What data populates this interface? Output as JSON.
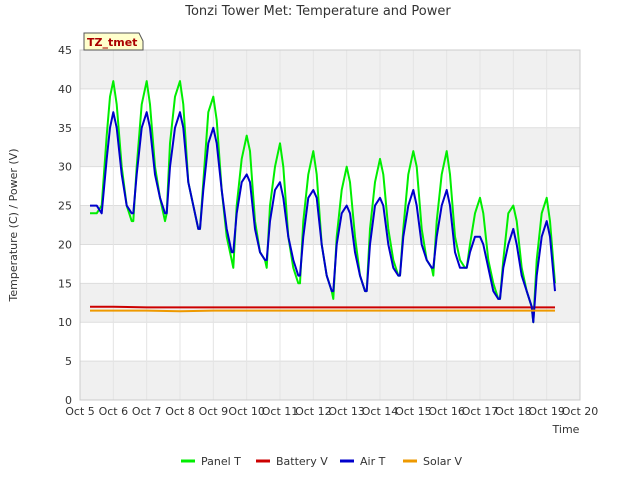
{
  "chart_data": {
    "type": "line",
    "title": "Tonzi Tower Met: Temperature and Power",
    "badge": "TZ_tmet",
    "xlabel": "Time",
    "ylabel": "Temperature (C) / Power (V)",
    "xlim": [
      5,
      20
    ],
    "ylim": [
      0,
      45
    ],
    "x_ticks": [
      5,
      6,
      7,
      8,
      9,
      10,
      11,
      12,
      13,
      14,
      15,
      16,
      17,
      18,
      19,
      20
    ],
    "x_tick_labels": [
      "Oct 5",
      "Oct 6",
      "Oct 7",
      "Oct 8",
      "Oct 9",
      "Oct 10",
      "Oct 11",
      "Oct 12",
      "Oct 13",
      "Oct 14",
      "Oct 15",
      "Oct 16",
      "Oct 17",
      "Oct 18",
      "Oct 19",
      "Oct 20"
    ],
    "y_ticks": [
      0,
      5,
      10,
      15,
      20,
      25,
      30,
      35,
      40,
      45
    ],
    "y_tick_labels": [
      "0",
      "5",
      "10",
      "15",
      "20",
      "25",
      "30",
      "35",
      "40",
      "45"
    ],
    "grid": true,
    "legend_position": "bottom",
    "series": [
      {
        "name": "Panel T",
        "color": "#00ee00",
        "x": [
          5.3,
          5.5,
          5.65,
          5.8,
          5.9,
          6.0,
          6.1,
          6.25,
          6.4,
          6.55,
          6.6,
          6.7,
          6.85,
          7.0,
          7.1,
          7.25,
          7.4,
          7.55,
          7.6,
          7.7,
          7.85,
          8.0,
          8.1,
          8.25,
          8.4,
          8.55,
          8.6,
          8.7,
          8.85,
          9.0,
          9.1,
          9.25,
          9.4,
          9.55,
          9.6,
          9.7,
          9.85,
          10.0,
          10.1,
          10.25,
          10.4,
          10.55,
          10.6,
          10.7,
          10.85,
          11.0,
          11.1,
          11.25,
          11.4,
          11.55,
          11.6,
          11.7,
          11.85,
          12.0,
          12.1,
          12.25,
          12.4,
          12.55,
          12.6,
          12.7,
          12.85,
          13.0,
          13.1,
          13.25,
          13.4,
          13.55,
          13.6,
          13.7,
          13.85,
          14.0,
          14.1,
          14.25,
          14.4,
          14.55,
          14.6,
          14.7,
          14.85,
          15.0,
          15.1,
          15.25,
          15.4,
          15.55,
          15.6,
          15.7,
          15.85,
          16.0,
          16.1,
          16.25,
          16.4,
          16.55,
          16.6,
          16.7,
          16.85,
          17.0,
          17.1,
          17.25,
          17.4,
          17.55,
          17.6,
          17.7,
          17.85,
          18.0,
          18.1,
          18.25,
          18.4,
          18.55,
          18.6,
          18.7,
          18.85,
          19.0,
          19.1,
          19.25
        ],
        "y": [
          24,
          24,
          25,
          34,
          39,
          41,
          38,
          30,
          25,
          23,
          23,
          30,
          38,
          41,
          38,
          30,
          26,
          23,
          24,
          33,
          39,
          41,
          38,
          28,
          25,
          22,
          22,
          28,
          37,
          39,
          36,
          27,
          21,
          18,
          17,
          25,
          31,
          34,
          32,
          23,
          19,
          18,
          17,
          25,
          30,
          33,
          30,
          21,
          17,
          15,
          15,
          23,
          29,
          32,
          29,
          20,
          16,
          14,
          13,
          21,
          27,
          30,
          28,
          21,
          16,
          14,
          14,
          22,
          28,
          31,
          29,
          22,
          18,
          16,
          16,
          22,
          29,
          32,
          30,
          22,
          18,
          17,
          16,
          23,
          29,
          32,
          29,
          21,
          18,
          17,
          17,
          20,
          24,
          26,
          24,
          18,
          15,
          13,
          13,
          18,
          24,
          25,
          23,
          17,
          14,
          12,
          10,
          18,
          24,
          26,
          23,
          15
        ]
      },
      {
        "name": "Battery V",
        "color": "#cc0000",
        "x": [
          5.3,
          6.0,
          7.0,
          8.0,
          9.0,
          10.0,
          11.0,
          12.0,
          13.0,
          14.0,
          15.0,
          16.0,
          17.0,
          18.0,
          19.0,
          19.25
        ],
        "y": [
          12.0,
          12.0,
          11.9,
          11.9,
          11.9,
          11.9,
          11.9,
          11.9,
          11.9,
          11.9,
          11.9,
          11.9,
          11.9,
          11.9,
          11.9,
          11.9
        ]
      },
      {
        "name": "Air T",
        "color": "#0000cc",
        "x": [
          5.3,
          5.5,
          5.65,
          5.8,
          5.9,
          6.0,
          6.1,
          6.25,
          6.4,
          6.55,
          6.6,
          6.7,
          6.85,
          7.0,
          7.1,
          7.25,
          7.4,
          7.55,
          7.6,
          7.7,
          7.85,
          8.0,
          8.1,
          8.25,
          8.4,
          8.55,
          8.6,
          8.7,
          8.85,
          9.0,
          9.1,
          9.25,
          9.4,
          9.55,
          9.6,
          9.7,
          9.85,
          10.0,
          10.1,
          10.25,
          10.4,
          10.55,
          10.6,
          10.7,
          10.85,
          11.0,
          11.1,
          11.25,
          11.4,
          11.55,
          11.6,
          11.7,
          11.85,
          12.0,
          12.1,
          12.25,
          12.4,
          12.55,
          12.6,
          12.7,
          12.85,
          13.0,
          13.1,
          13.25,
          13.4,
          13.55,
          13.6,
          13.7,
          13.85,
          14.0,
          14.1,
          14.25,
          14.4,
          14.55,
          14.6,
          14.7,
          14.85,
          15.0,
          15.1,
          15.25,
          15.4,
          15.55,
          15.6,
          15.7,
          15.85,
          16.0,
          16.1,
          16.25,
          16.4,
          16.55,
          16.6,
          16.7,
          16.85,
          17.0,
          17.1,
          17.25,
          17.4,
          17.55,
          17.6,
          17.7,
          17.85,
          18.0,
          18.1,
          18.25,
          18.4,
          18.55,
          18.6,
          18.7,
          18.85,
          19.0,
          19.1,
          19.25
        ],
        "y": [
          25,
          25,
          24,
          31,
          35,
          37,
          35,
          29,
          25,
          24,
          24,
          29,
          35,
          37,
          35,
          29,
          26,
          24,
          24,
          30,
          35,
          37,
          35,
          28,
          25,
          22,
          22,
          27,
          33,
          35,
          33,
          27,
          22,
          19,
          19,
          24,
          28,
          29,
          28,
          22,
          19,
          18,
          18,
          23,
          27,
          28,
          26,
          21,
          18,
          16,
          16,
          21,
          26,
          27,
          26,
          20,
          16,
          14,
          14,
          20,
          24,
          25,
          24,
          19,
          16,
          14,
          14,
          20,
          25,
          26,
          25,
          20,
          17,
          16,
          16,
          21,
          25,
          27,
          25,
          20,
          18,
          17,
          17,
          21,
          25,
          27,
          25,
          19,
          17,
          17,
          17,
          19,
          21,
          21,
          20,
          17,
          14,
          13,
          13,
          17,
          20,
          22,
          20,
          16,
          14,
          12,
          10,
          16,
          21,
          23,
          21,
          14
        ]
      },
      {
        "name": "Solar V",
        "color": "#ee9900",
        "x": [
          5.3,
          6.0,
          7.0,
          8.0,
          9.0,
          10.0,
          11.0,
          12.0,
          13.0,
          14.0,
          15.0,
          16.0,
          17.0,
          18.0,
          19.0,
          19.25
        ],
        "y": [
          11.5,
          11.5,
          11.5,
          11.4,
          11.5,
          11.5,
          11.5,
          11.5,
          11.5,
          11.5,
          11.5,
          11.5,
          11.5,
          11.5,
          11.5,
          11.5
        ]
      }
    ]
  }
}
